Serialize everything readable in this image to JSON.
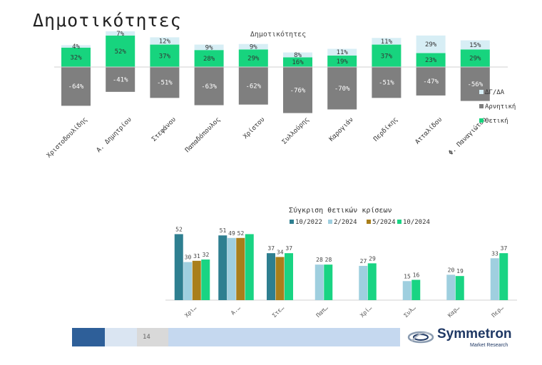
{
  "page": {
    "title": "Δημοτικότητες",
    "page_number": "14"
  },
  "brand": {
    "name": "Symmetron",
    "tagline": "Market Research"
  },
  "colors": {
    "negative": "#7f7f7f",
    "positive": "#17d47e",
    "dont_know": "#d7eef5",
    "s2022": "#2e7f90",
    "s2024_2": "#9fcfdf",
    "s2024_5": "#a97f1b",
    "s2024_10": "#19d483",
    "footer_dark": "#2e5f99",
    "footer_light": "#dae5f2",
    "footer_gray": "#d9d9d9",
    "footer_blue": "#c5d8ef"
  },
  "chart_data": [
    {
      "type": "bar",
      "title": "Δημοτικότητες",
      "categories": [
        "Χριστοδουλίδης",
        "Α. Δημητρίου",
        "Στεφάνου",
        "Παπαδόπουλος",
        "Χρίστου",
        "Συλλούρης",
        "Καρογιάν",
        "Περδίκης",
        "Ατταλίδου",
        "Φ. Παναγιώτου"
      ],
      "series": [
        {
          "name": "ΔΓ/ΔΑ",
          "values": [
            4,
            7,
            12,
            9,
            9,
            8,
            11,
            11,
            29,
            15
          ],
          "labels": [
            "4%",
            "7%",
            "12%",
            "9%",
            "9%",
            "8%",
            "11%",
            "11%",
            "29%",
            "15%"
          ]
        },
        {
          "name": "Αρνητική",
          "values": [
            -64,
            -41,
            -51,
            -63,
            -62,
            -76,
            -70,
            -51,
            -47,
            -56
          ],
          "labels": [
            "-64%",
            "-41%",
            "-51%",
            "-63%",
            "-62%",
            "-76%",
            "-70%",
            "-51%",
            "-47%",
            "-56%"
          ]
        },
        {
          "name": "Θετική",
          "values": [
            32,
            52,
            37,
            28,
            29,
            16,
            19,
            37,
            23,
            29
          ],
          "labels": [
            "32%",
            "52%",
            "37%",
            "28%",
            "29%",
            "16%",
            "19%",
            "37%",
            "23%",
            "29%"
          ]
        }
      ],
      "legend": [
        "ΔΓ/ΔΑ",
        "Αρνητική",
        "Θετική"
      ],
      "legend_position": "right"
    },
    {
      "type": "bar",
      "title": "Σύγκριση θετικών κρίσεων",
      "categories": [
        "Χρι…",
        "Α.…",
        "Στε…",
        "Παπ…",
        "Χρί…",
        "Συλ…",
        "Καρ…",
        "Περ…"
      ],
      "series": [
        {
          "name": "10/2022",
          "values": [
            52,
            51,
            37,
            null,
            null,
            null,
            null,
            null
          ]
        },
        {
          "name": "2/2024",
          "values": [
            30,
            49,
            null,
            28,
            27,
            15,
            20,
            33
          ]
        },
        {
          "name": "5/2024",
          "values": [
            31,
            49,
            34,
            null,
            null,
            null,
            null,
            null
          ]
        },
        {
          "name": "10/2024",
          "values": [
            32,
            52,
            37,
            28,
            29,
            16,
            19,
            37
          ]
        }
      ],
      "value_labels": [
        [
          "52",
          "30",
          "31",
          "32"
        ],
        [
          "51",
          "49",
          "52"
        ],
        [
          "37",
          "34",
          "37"
        ],
        [
          "28",
          "28"
        ],
        [
          "27",
          "29"
        ],
        [
          "15",
          "16"
        ],
        [
          "20",
          "19"
        ],
        [
          "33",
          "37"
        ]
      ],
      "legend": [
        "10/2022",
        "2/2024",
        "5/2024",
        "10/2024"
      ],
      "legend_position": "top"
    }
  ]
}
